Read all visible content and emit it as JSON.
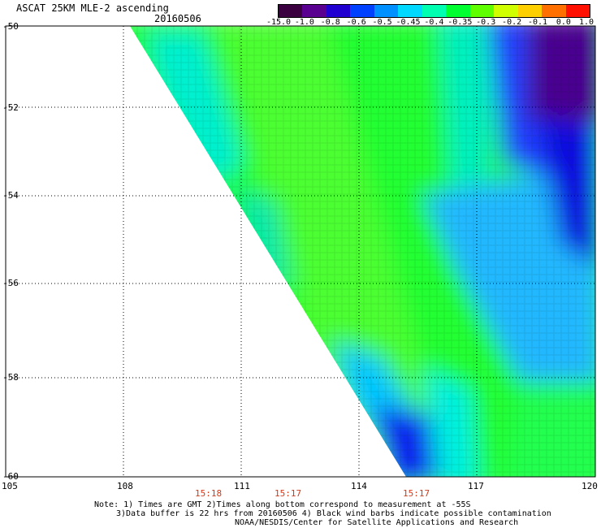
{
  "header": {
    "title": "ASCAT 25KM MLE-2 ascending",
    "date": "20160506"
  },
  "colorbar": {
    "labels": [
      "-15.0",
      "-1.0",
      "-0.8",
      "-0.6",
      "-0.5",
      "-0.45",
      "-0.4",
      "-0.35",
      "-0.3",
      "-0.2",
      "-0.1",
      "0.0",
      "1.0"
    ],
    "colors": [
      "#3a0040",
      "#5a0090",
      "#2000d0",
      "#0040ff",
      "#0090ff",
      "#00d8ff",
      "#00ffb0",
      "#00ff30",
      "#60ff00",
      "#d0ff00",
      "#ffd000",
      "#ff7000",
      "#ff1000"
    ]
  },
  "axes": {
    "lon_ticks": [
      "105",
      "108",
      "111",
      "114",
      "117",
      "120"
    ],
    "lat_ticks": [
      "-50",
      "-52",
      "-54",
      "-56",
      "-58",
      "-60"
    ],
    "times": [
      "15:18",
      "15:17",
      "15:17"
    ],
    "lon_range": [
      105,
      120
    ],
    "lat_range": [
      -50,
      -60
    ],
    "grid": "dotted"
  },
  "footer": {
    "line1": "Note: 1) Times are GMT 2)Times along bottom correspond to measurement at -55S",
    "line2": "3)Data buffer is 22 hrs from 20160506 4) Black wind barbs indicate possible contamination",
    "line3": "NOAA/NESDIS/Center for Satellite Applications and Research"
  }
}
